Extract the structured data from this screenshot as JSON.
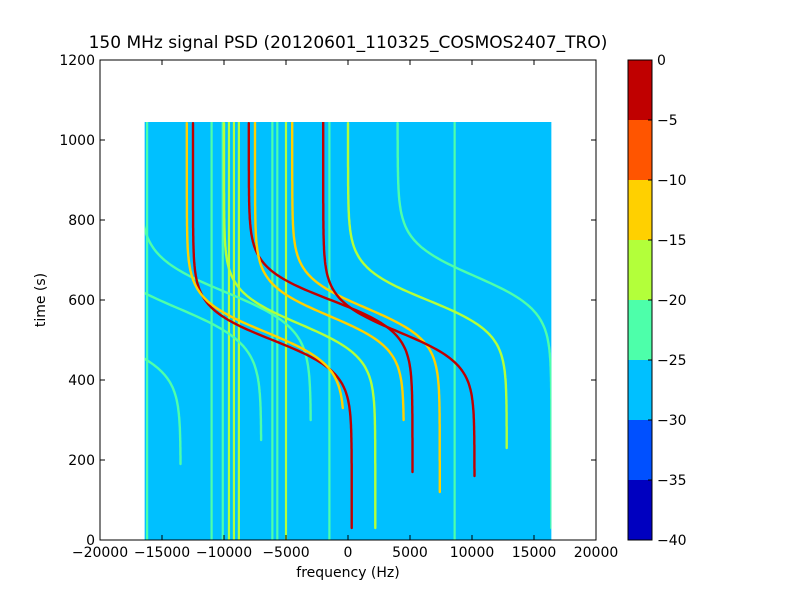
{
  "chart_data": {
    "type": "heatmap",
    "title": "150 MHz signal PSD (20120601_110325_COSMOS2407_TRO)",
    "xlabel": "frequency (Hz)",
    "ylabel": "time (s)",
    "xlim": [
      -20000,
      20000
    ],
    "ylim": [
      0,
      1200
    ],
    "xticks": [
      -20000,
      -15000,
      -10000,
      -5000,
      0,
      5000,
      10000,
      15000,
      20000
    ],
    "xtick_labels": [
      "−20000",
      "−15000",
      "−10000",
      "−5000",
      "0",
      "5000",
      "10000",
      "15000",
      "20000"
    ],
    "yticks": [
      0,
      200,
      400,
      600,
      800,
      1000,
      1200
    ],
    "ytick_labels": [
      "0",
      "200",
      "400",
      "600",
      "800",
      "1000",
      "1200"
    ],
    "data_extent": {
      "x": [
        -16400,
        16400
      ],
      "y": [
        0,
        1045
      ]
    },
    "background_value": -27.5,
    "colorbar": {
      "levels": [
        0,
        -5,
        -10,
        -15,
        -20,
        -25,
        -30,
        -35,
        -40
      ],
      "level_labels": [
        "0",
        "−5",
        "−10",
        "−15",
        "−20",
        "−25",
        "−30",
        "−35",
        "−40"
      ],
      "colors": [
        "#c00000",
        "#ff5500",
        "#ffd000",
        "#b3ff3a",
        "#4dffaa",
        "#00c0ff",
        "#0050ff",
        "#0000c0"
      ]
    },
    "vertical_lines": [
      {
        "x": -16200,
        "value": -22
      },
      {
        "x": -11000,
        "value": -22
      },
      {
        "x": -10100,
        "value": -22
      },
      {
        "x": -9600,
        "value": -19
      },
      {
        "x": -9200,
        "value": -17
      },
      {
        "x": -8800,
        "value": -19
      },
      {
        "x": -6100,
        "value": -22
      },
      {
        "x": -5700,
        "value": -22
      },
      {
        "x": -5000,
        "value": -19
      },
      {
        "x": -1500,
        "value": -22
      },
      {
        "x": 8600,
        "value": -22
      }
    ],
    "doppler_tracks": [
      {
        "f_start": -13500,
        "f_end": -27500,
        "t_center": 510,
        "width_t": 85,
        "t_min": 190,
        "t_max": 1045,
        "value": -22
      },
      {
        "f_start": -7000,
        "f_end": -20500,
        "t_center": 580,
        "width_t": 90,
        "t_min": 250,
        "t_max": 1045,
        "value": -22
      },
      {
        "f_start": -3000,
        "f_end": -16800,
        "t_center": 620,
        "width_t": 90,
        "t_min": 300,
        "t_max": 1045,
        "value": -22
      },
      {
        "f_start": 300,
        "f_end": -12500,
        "t_center": 500,
        "width_t": 80,
        "t_min": 30,
        "t_max": 1045,
        "value": -2
      },
      {
        "f_start": -300,
        "f_end": -13000,
        "t_center": 520,
        "width_t": 82,
        "t_min": 330,
        "t_max": 1045,
        "value": -12
      },
      {
        "f_start": 2200,
        "f_end": -10000,
        "t_center": 540,
        "width_t": 82,
        "t_min": 30,
        "t_max": 1045,
        "value": -17
      },
      {
        "f_start": 5200,
        "f_end": -8000,
        "t_center": 600,
        "width_t": 80,
        "t_min": 170,
        "t_max": 1045,
        "value": -2
      },
      {
        "f_start": 4500,
        "f_end": -7500,
        "t_center": 560,
        "width_t": 80,
        "t_min": 300,
        "t_max": 1045,
        "value": -12
      },
      {
        "f_start": 7400,
        "f_end": -4500,
        "t_center": 580,
        "width_t": 80,
        "t_min": 120,
        "t_max": 1045,
        "value": -12
      },
      {
        "f_start": 10200,
        "f_end": -2000,
        "t_center": 520,
        "width_t": 80,
        "t_min": 160,
        "t_max": 1045,
        "value": -2
      },
      {
        "f_start": 12800,
        "f_end": 0,
        "t_center": 600,
        "width_t": 82,
        "t_min": 230,
        "t_max": 1045,
        "value": -17
      },
      {
        "f_start": 16400,
        "f_end": 4000,
        "t_center": 660,
        "width_t": 85,
        "t_min": 30,
        "t_max": 1045,
        "value": -22
      }
    ]
  }
}
